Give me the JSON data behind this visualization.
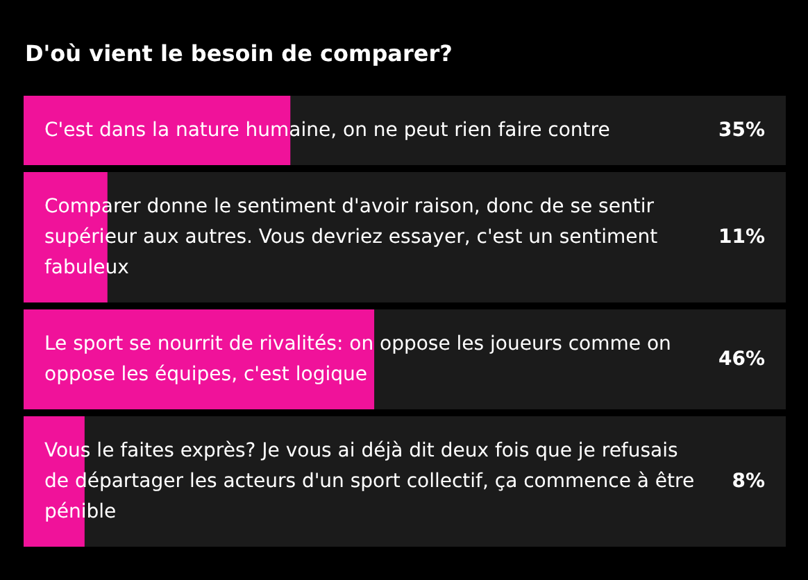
{
  "chart_data": {
    "type": "bar",
    "orientation": "horizontal",
    "title": "D'où vient le besoin de comparer?",
    "categories": [
      "C'est dans la nature humaine, on ne peut rien faire contre",
      "Comparer donne le sentiment d'avoir raison, donc de se sentir supérieur aux autres. Vous devriez essayer, c'est un sentiment fabuleux",
      "Le sport se nourrit de rivalités: on oppose les joueurs comme on oppose les équipes, c'est logique",
      "Vous le faites exprès? Je vous ai déjà dit deux fois que je refusais de départager les acteurs d'un sport collectif, ça commence à être pénible"
    ],
    "values": [
      35,
      11,
      46,
      8
    ],
    "value_labels": [
      "35%",
      "11%",
      "46%",
      "8%"
    ],
    "color": "#f0129a",
    "tick_labels": "y"
  }
}
